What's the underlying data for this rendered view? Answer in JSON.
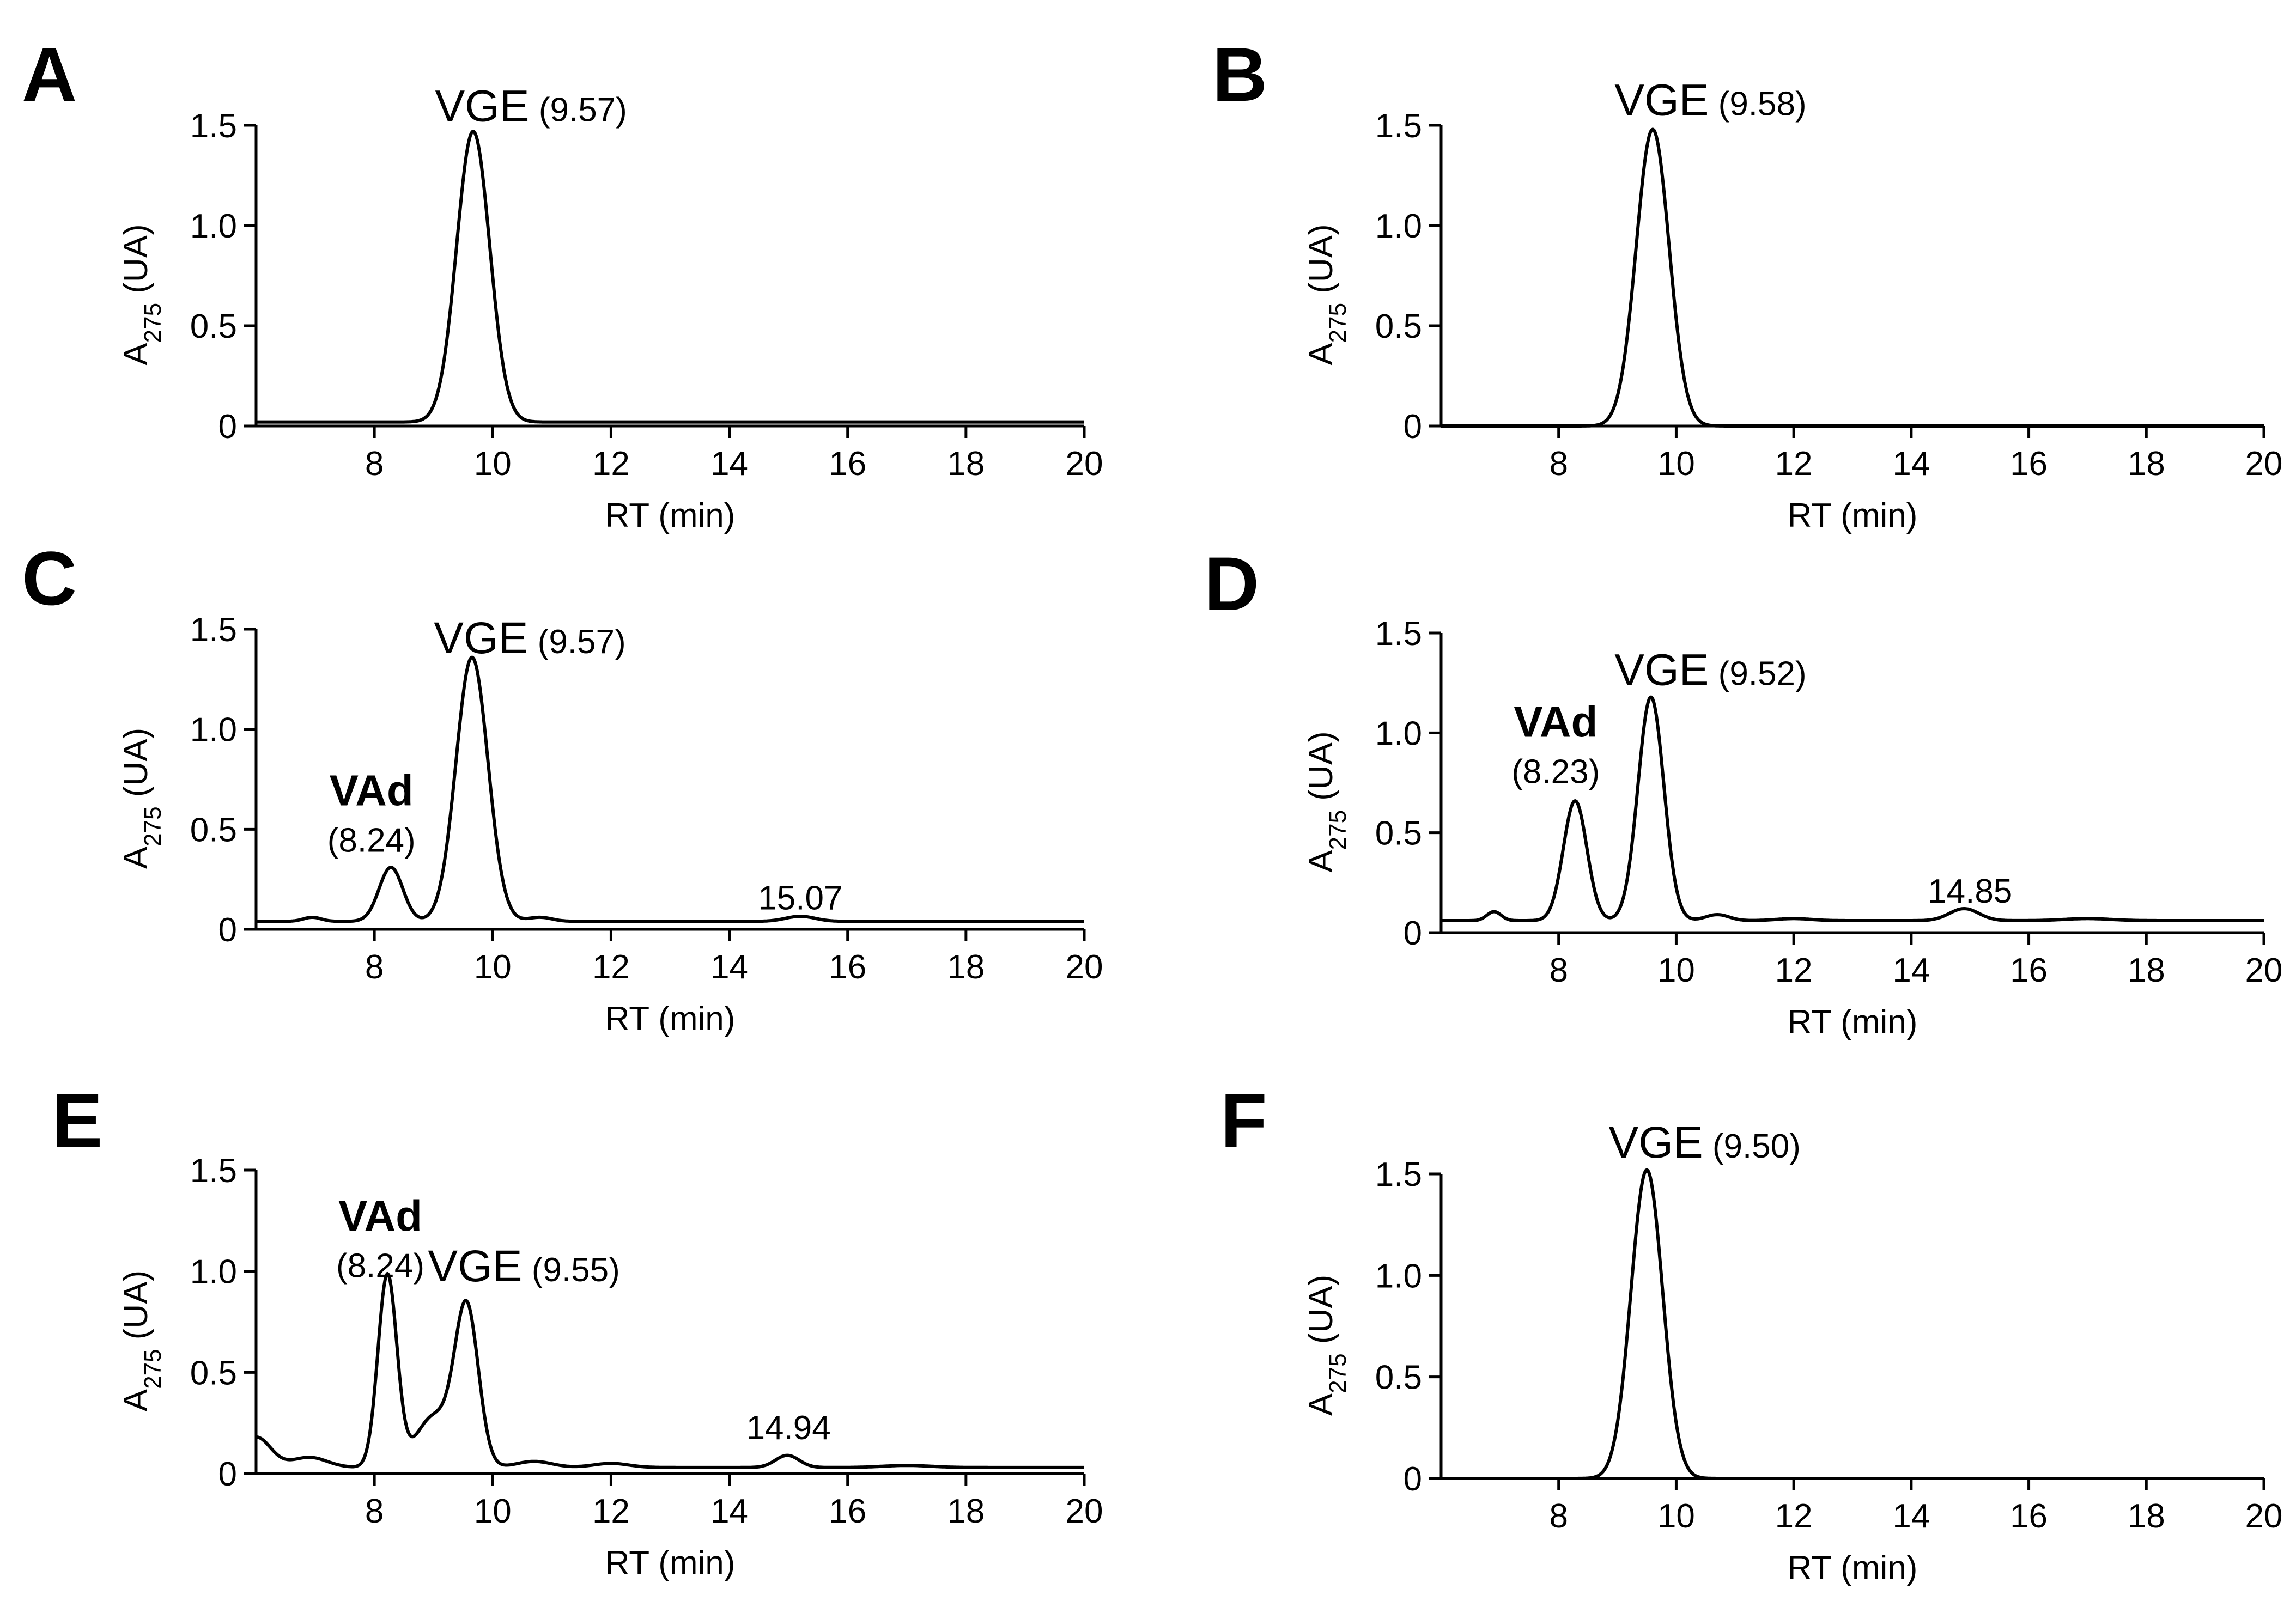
{
  "chart_data": [
    {
      "panel": "A",
      "type": "line",
      "xlabel": "RT (min)",
      "ylabel_main": "A",
      "ylabel_sub": "275",
      "ylabel_unit": " (UA)",
      "xlim": [
        6,
        20
      ],
      "ylim": [
        0,
        1.5
      ],
      "xticks": [
        "8",
        "10",
        "12",
        "14",
        "16",
        "18",
        "20"
      ],
      "yticks": [
        "0",
        "0.5",
        "1.0",
        "1.5"
      ],
      "baseline": 0.02,
      "peaks": [
        {
          "x": 9.67,
          "h": 1.45,
          "w": 0.28
        }
      ],
      "annotations": [
        {
          "kind": "name",
          "name": "VGE",
          "rt": "(9.57)",
          "x": 9.67,
          "y": 1.52
        }
      ]
    },
    {
      "panel": "B",
      "type": "line",
      "xlabel": "RT (min)",
      "ylabel_main": "A",
      "ylabel_sub": "275",
      "ylabel_unit": " (UA)",
      "xlim": [
        6,
        20
      ],
      "ylim": [
        0,
        1.5
      ],
      "xticks": [
        "8",
        "10",
        "12",
        "14",
        "16",
        "18",
        "20"
      ],
      "yticks": [
        "0",
        "0.5",
        "1.0",
        "1.5"
      ],
      "baseline": 0.0,
      "peaks": [
        {
          "x": 9.6,
          "h": 1.48,
          "w": 0.28
        }
      ],
      "annotations": [
        {
          "kind": "name",
          "name": "VGE",
          "rt": "(9.58)",
          "x": 9.6,
          "y": 1.55
        }
      ]
    },
    {
      "panel": "C",
      "type": "line",
      "xlabel": "RT (min)",
      "ylabel_main": "A",
      "ylabel_sub": "275",
      "ylabel_unit": " (UA)",
      "xlim": [
        6,
        20
      ],
      "ylim": [
        0,
        1.5
      ],
      "xticks": [
        "8",
        "10",
        "12",
        "14",
        "16",
        "18",
        "20"
      ],
      "yticks": [
        "0",
        "0.5",
        "1.0",
        "1.5"
      ],
      "baseline": 0.04,
      "peaks": [
        {
          "x": 6.95,
          "h": 0.02,
          "w": 0.15
        },
        {
          "x": 8.28,
          "h": 0.27,
          "w": 0.2
        },
        {
          "x": 9.65,
          "h": 1.32,
          "w": 0.27
        },
        {
          "x": 10.8,
          "h": 0.02,
          "w": 0.2
        },
        {
          "x": 15.2,
          "h": 0.025,
          "w": 0.25
        }
      ],
      "annotations": [
        {
          "kind": "name",
          "name": "VGE",
          "rt": "(9.57)",
          "x": 9.65,
          "y": 1.38
        },
        {
          "kind": "bold",
          "name": "VAd",
          "rt": "(8.24)",
          "x": 7.95,
          "y": 0.62
        },
        {
          "kind": "rt",
          "rt": "15.07",
          "x": 15.2,
          "y": 0.1
        }
      ]
    },
    {
      "panel": "D",
      "type": "line",
      "xlabel": "RT (min)",
      "ylabel_main": "A",
      "ylabel_sub": "275",
      "ylabel_unit": " (UA)",
      "xlim": [
        6,
        20
      ],
      "ylim": [
        0,
        1.5
      ],
      "xticks": [
        "8",
        "10",
        "12",
        "14",
        "16",
        "18",
        "20"
      ],
      "yticks": [
        "0",
        "0.5",
        "1.0",
        "1.5"
      ],
      "baseline": 0.06,
      "peaks": [
        {
          "x": 6.9,
          "h": 0.045,
          "w": 0.12
        },
        {
          "x": 8.28,
          "h": 0.6,
          "w": 0.2
        },
        {
          "x": 9.57,
          "h": 1.12,
          "w": 0.22
        },
        {
          "x": 10.7,
          "h": 0.03,
          "w": 0.2
        },
        {
          "x": 12.0,
          "h": 0.01,
          "w": 0.3
        },
        {
          "x": 14.9,
          "h": 0.06,
          "w": 0.25
        },
        {
          "x": 17.0,
          "h": 0.01,
          "w": 0.4
        }
      ],
      "annotations": [
        {
          "kind": "name",
          "name": "VGE",
          "rt": "(9.52)",
          "x": 9.6,
          "y": 1.24
        },
        {
          "kind": "bold",
          "name": "VAd",
          "rt": "(8.23)",
          "x": 7.95,
          "y": 0.98
        },
        {
          "kind": "rt",
          "rt": "14.85",
          "x": 15.0,
          "y": 0.15
        }
      ]
    },
    {
      "panel": "E",
      "type": "line",
      "xlabel": "RT (min)",
      "ylabel_main": "A",
      "ylabel_sub": "275",
      "ylabel_unit": " (UA)",
      "xlim": [
        6,
        20
      ],
      "ylim": [
        0,
        1.5
      ],
      "xticks": [
        "8",
        "10",
        "12",
        "14",
        "16",
        "18",
        "20"
      ],
      "yticks": [
        "0",
        "0.5",
        "1.0",
        "1.5"
      ],
      "baseline": 0.03,
      "peaks": [
        {
          "x": 6.0,
          "h": 0.15,
          "w": 0.25
        },
        {
          "x": 6.9,
          "h": 0.05,
          "w": 0.3
        },
        {
          "x": 8.22,
          "h": 0.95,
          "w": 0.16
        },
        {
          "x": 9.0,
          "h": 0.25,
          "w": 0.3
        },
        {
          "x": 9.56,
          "h": 0.78,
          "w": 0.2
        },
        {
          "x": 10.7,
          "h": 0.03,
          "w": 0.3
        },
        {
          "x": 12.0,
          "h": 0.02,
          "w": 0.3
        },
        {
          "x": 14.98,
          "h": 0.06,
          "w": 0.2
        },
        {
          "x": 17.0,
          "h": 0.01,
          "w": 0.4
        }
      ],
      "annotations": [
        {
          "kind": "bold",
          "name": "VAd",
          "rt": "(8.24)",
          "x": 8.1,
          "y": 1.2
        },
        {
          "kind": "name",
          "name": "VGE",
          "rt": "(9.55)",
          "x": 9.55,
          "y": 0.95
        },
        {
          "kind": "rt",
          "rt": "14.94",
          "x": 15.0,
          "y": 0.17
        }
      ]
    },
    {
      "panel": "F",
      "type": "line",
      "xlabel": "RT (min)",
      "ylabel_main": "A",
      "ylabel_sub": "275",
      "ylabel_unit": " (UA)",
      "xlim": [
        6,
        20
      ],
      "ylim": [
        0,
        1.5
      ],
      "xticks": [
        "8",
        "10",
        "12",
        "14",
        "16",
        "18",
        "20"
      ],
      "yticks": [
        "0",
        "0.5",
        "1.0",
        "1.5"
      ],
      "baseline": 0.0,
      "peaks": [
        {
          "x": 9.5,
          "h": 1.52,
          "w": 0.27
        }
      ],
      "annotations": [
        {
          "kind": "name",
          "name": "VGE",
          "rt": "(9.50)",
          "x": 9.5,
          "y": 1.58
        }
      ]
    }
  ]
}
